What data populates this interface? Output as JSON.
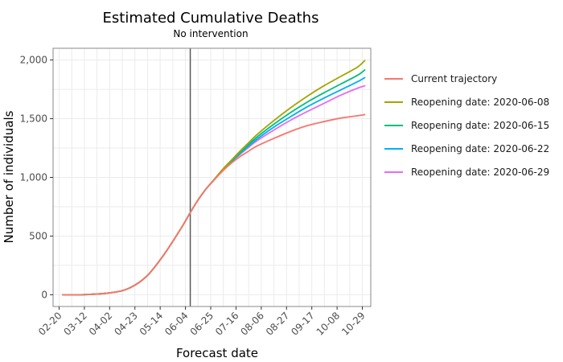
{
  "chart_data": {
    "type": "line",
    "title": "Estimated Cumulative Deaths",
    "subtitle": "No intervention",
    "xlabel": "Forecast date",
    "ylabel": "Number of individuals",
    "x_axis_type": "date",
    "xlim": [
      "2020-02-15",
      "2020-11-05"
    ],
    "ylim": [
      -100,
      2100
    ],
    "x_ticks": [
      {
        "date": "2020-02-20",
        "label": "02-20"
      },
      {
        "date": "2020-03-12",
        "label": "03-12"
      },
      {
        "date": "2020-04-02",
        "label": "04-02"
      },
      {
        "date": "2020-04-23",
        "label": "04-23"
      },
      {
        "date": "2020-05-14",
        "label": "05-14"
      },
      {
        "date": "2020-06-04",
        "label": "06-04"
      },
      {
        "date": "2020-06-25",
        "label": "06-25"
      },
      {
        "date": "2020-07-16",
        "label": "07-16"
      },
      {
        "date": "2020-08-06",
        "label": "08-06"
      },
      {
        "date": "2020-08-27",
        "label": "08-27"
      },
      {
        "date": "2020-09-17",
        "label": "09-17"
      },
      {
        "date": "2020-10-08",
        "label": "10-08"
      },
      {
        "date": "2020-10-29",
        "label": "10-29"
      }
    ],
    "y_ticks": [
      {
        "value": 0,
        "label": "0"
      },
      {
        "value": 500,
        "label": "500"
      },
      {
        "value": 1000,
        "label": "1,000"
      },
      {
        "value": 1500,
        "label": "1,500"
      },
      {
        "value": 2000,
        "label": "2,000"
      }
    ],
    "grid": true,
    "legend_position": "right",
    "reference_line": {
      "type": "vertical",
      "date": "2020-06-08",
      "color": "#595959"
    },
    "x": [
      "2020-02-23",
      "2020-03-15",
      "2020-04-05",
      "2020-04-19",
      "2020-05-03",
      "2020-05-17",
      "2020-05-31",
      "2020-06-08",
      "2020-06-14",
      "2020-06-21",
      "2020-06-28",
      "2020-07-05",
      "2020-07-12",
      "2020-07-19",
      "2020-07-26",
      "2020-08-02",
      "2020-08-16",
      "2020-08-30",
      "2020-09-13",
      "2020-09-27",
      "2020-10-11",
      "2020-10-25",
      "2020-10-31"
    ],
    "series": [
      {
        "name": "Current trajectory",
        "color": "#F8766D",
        "values": [
          0,
          2,
          20,
          60,
          160,
          340,
          560,
          700,
          800,
          900,
          980,
          1055,
          1120,
          1175,
          1220,
          1265,
          1330,
          1390,
          1440,
          1475,
          1505,
          1525,
          1535
        ]
      },
      {
        "name": "Reopening date: 2020-06-08",
        "color": "#A3A500",
        "values": [
          0,
          2,
          20,
          60,
          160,
          340,
          560,
          700,
          800,
          900,
          985,
          1070,
          1145,
          1220,
          1290,
          1360,
          1480,
          1590,
          1690,
          1780,
          1860,
          1940,
          1995
        ]
      },
      {
        "name": "Reopening date: 2020-06-15",
        "color": "#00BF7D",
        "values": [
          0,
          2,
          20,
          60,
          160,
          340,
          560,
          700,
          800,
          900,
          982,
          1065,
          1138,
          1208,
          1275,
          1340,
          1450,
          1550,
          1640,
          1720,
          1795,
          1870,
          1915
        ]
      },
      {
        "name": "Reopening date: 2020-06-22",
        "color": "#00B0F6",
        "values": [
          0,
          2,
          20,
          60,
          160,
          340,
          560,
          700,
          800,
          900,
          980,
          1062,
          1133,
          1200,
          1262,
          1322,
          1425,
          1515,
          1600,
          1675,
          1745,
          1815,
          1850
        ]
      },
      {
        "name": "Reopening date: 2020-06-29",
        "color": "#E76BF3",
        "values": [
          0,
          2,
          20,
          60,
          160,
          340,
          560,
          700,
          800,
          900,
          980,
          1060,
          1130,
          1193,
          1252,
          1308,
          1400,
          1485,
          1560,
          1630,
          1700,
          1760,
          1780
        ]
      }
    ]
  }
}
